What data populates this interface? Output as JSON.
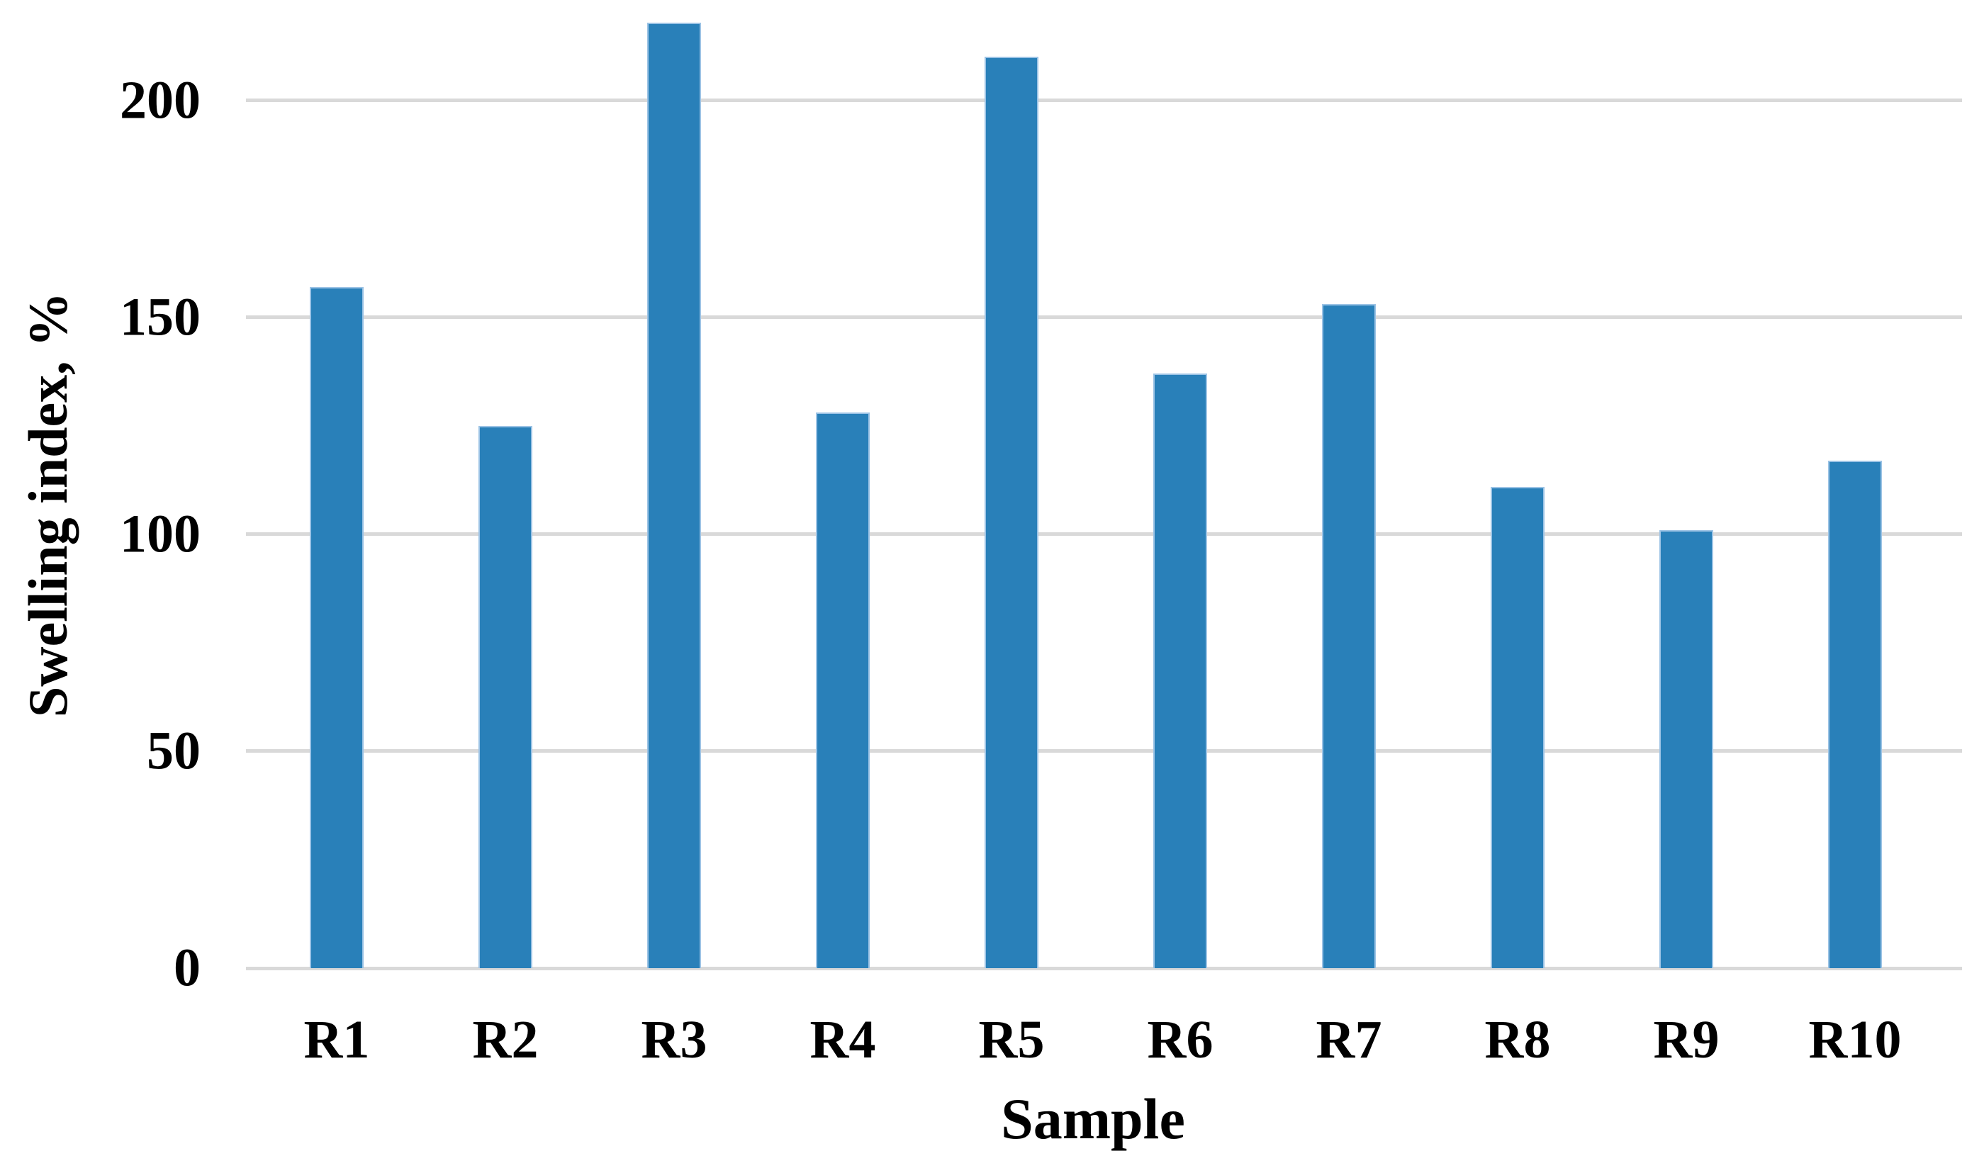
{
  "chart_data": {
    "type": "bar",
    "title": "",
    "xlabel": "Sample",
    "ylabel": "Swelling index, %",
    "categories": [
      "R1",
      "R2",
      "R3",
      "R4",
      "R5",
      "R6",
      "R7",
      "R8",
      "R9",
      "R10"
    ],
    "values": [
      157,
      125,
      218,
      128,
      210,
      137,
      153,
      111,
      101,
      117
    ],
    "yticks": [
      0,
      50,
      100,
      150,
      200
    ],
    "ylim": [
      0,
      223
    ],
    "grid": "horizontal",
    "legend_position": "none",
    "bar_color": "#2980B9",
    "bar_border_color": "#9CC3E5",
    "gridline_color": "#D9D9D9",
    "text_color": "#000000",
    "background_color": "#FFFFFF"
  }
}
